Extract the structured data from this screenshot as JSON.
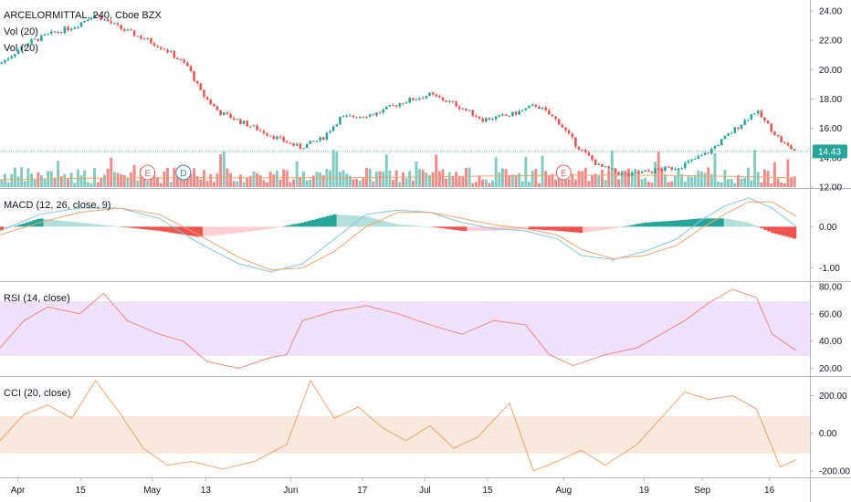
{
  "colors": {
    "up": "#26a69a",
    "down": "#ef5350",
    "vol_up": "#7fcbbf",
    "vol_down": "#f08a8a",
    "macd_line": "#7fc7d9",
    "signal_line": "#f5a36b",
    "rsi_line": "#f08a78",
    "rsi_band": "#efe0fb",
    "cci_line": "#f5a36b",
    "cci_band": "#f8e9dd",
    "price_tag": "#26a69a",
    "axis_text": "#131722"
  },
  "price_pane": {
    "title": "ARCELORMITTAL, 240, Cboe BZX",
    "legend": [
      "Vol (20)",
      "Vol (20)"
    ],
    "y_ticks": [
      "24.00",
      "22.00",
      "20.00",
      "18.00",
      "16.00",
      "14.00",
      "12.00"
    ],
    "last_price": "14.43",
    "earnings_markers": [
      {
        "label": "E",
        "date": "2019-04-30"
      },
      {
        "label": "D",
        "date": "2019-05-08"
      },
      {
        "label": "E",
        "date": "2019-08-01"
      }
    ]
  },
  "macd_pane": {
    "title": "MACD (12, 26, close, 9)",
    "y_ticks": [
      "0.00",
      "-1.00"
    ]
  },
  "rsi_pane": {
    "title": "RSI (14, close)",
    "y_ticks": [
      "80.00",
      "60.00",
      "40.00",
      "20.00"
    ]
  },
  "cci_pane": {
    "title": "CCI (20, close)",
    "y_ticks": [
      "200.00",
      "0.00",
      "-200.00"
    ]
  },
  "x_axis": {
    "ticks": [
      "Apr",
      "15",
      "May",
      "13",
      "Jun",
      "17",
      "Jul",
      "15",
      "Aug",
      "19",
      "Sep",
      "16"
    ]
  },
  "chart_data": {
    "type": "candlestick",
    "x_range": [
      "2019-03-28",
      "2019-09-22"
    ],
    "price_ylim": [
      12,
      24.5
    ],
    "price_path": [
      {
        "date": "2019-03-28",
        "close": 20.4
      },
      {
        "date": "2019-04-03",
        "close": 21.8
      },
      {
        "date": "2019-04-08",
        "close": 22.4
      },
      {
        "date": "2019-04-14",
        "close": 23.0
      },
      {
        "date": "2019-04-18",
        "close": 23.8
      },
      {
        "date": "2019-04-24",
        "close": 22.8
      },
      {
        "date": "2019-04-30",
        "close": 22.0
      },
      {
        "date": "2019-05-04",
        "close": 21.4
      },
      {
        "date": "2019-05-09",
        "close": 20.2
      },
      {
        "date": "2019-05-12",
        "close": 18.4
      },
      {
        "date": "2019-05-16",
        "close": 17.1
      },
      {
        "date": "2019-05-22",
        "close": 16.3
      },
      {
        "date": "2019-05-30",
        "close": 15.2
      },
      {
        "date": "2019-06-03",
        "close": 14.7
      },
      {
        "date": "2019-06-08",
        "close": 15.3
      },
      {
        "date": "2019-06-12",
        "close": 16.7
      },
      {
        "date": "2019-06-20",
        "close": 17.0
      },
      {
        "date": "2019-06-26",
        "close": 17.8
      },
      {
        "date": "2019-07-02",
        "close": 18.3
      },
      {
        "date": "2019-07-08",
        "close": 17.6
      },
      {
        "date": "2019-07-14",
        "close": 16.6
      },
      {
        "date": "2019-07-20",
        "close": 16.9
      },
      {
        "date": "2019-07-26",
        "close": 17.6
      },
      {
        "date": "2019-07-31",
        "close": 16.4
      },
      {
        "date": "2019-08-04",
        "close": 14.8
      },
      {
        "date": "2019-08-09",
        "close": 13.4
      },
      {
        "date": "2019-08-15",
        "close": 12.8
      },
      {
        "date": "2019-08-21",
        "close": 13.1
      },
      {
        "date": "2019-08-27",
        "close": 13.4
      },
      {
        "date": "2019-09-02",
        "close": 14.3
      },
      {
        "date": "2019-09-07",
        "close": 15.6
      },
      {
        "date": "2019-09-13",
        "close": 17.2
      },
      {
        "date": "2019-09-19",
        "close": 15.0
      },
      {
        "date": "2019-09-22",
        "close": 14.43
      }
    ],
    "macd_ylim": [
      -1.3,
      0.85
    ],
    "macd_line": [
      [
        0,
        -0.1
      ],
      [
        0.05,
        0.3
      ],
      [
        0.1,
        0.45
      ],
      [
        0.15,
        0.45
      ],
      [
        0.2,
        0.2
      ],
      [
        0.25,
        -0.4
      ],
      [
        0.3,
        -0.9
      ],
      [
        0.34,
        -1.1
      ],
      [
        0.38,
        -0.9
      ],
      [
        0.42,
        -0.3
      ],
      [
        0.46,
        0.3
      ],
      [
        0.5,
        0.4
      ],
      [
        0.54,
        0.35
      ],
      [
        0.58,
        0.1
      ],
      [
        0.62,
        -0.05
      ],
      [
        0.66,
        -0.1
      ],
      [
        0.7,
        -0.3
      ],
      [
        0.73,
        -0.7
      ],
      [
        0.77,
        -0.8
      ],
      [
        0.81,
        -0.6
      ],
      [
        0.85,
        -0.3
      ],
      [
        0.88,
        0.15
      ],
      [
        0.91,
        0.5
      ],
      [
        0.94,
        0.7
      ],
      [
        0.97,
        0.45
      ],
      [
        1.0,
        0.0
      ]
    ],
    "signal_line": [
      [
        0,
        -0.2
      ],
      [
        0.05,
        0.1
      ],
      [
        0.1,
        0.35
      ],
      [
        0.15,
        0.45
      ],
      [
        0.2,
        0.3
      ],
      [
        0.25,
        -0.2
      ],
      [
        0.3,
        -0.75
      ],
      [
        0.34,
        -1.05
      ],
      [
        0.38,
        -1.0
      ],
      [
        0.42,
        -0.6
      ],
      [
        0.46,
        0.0
      ],
      [
        0.5,
        0.35
      ],
      [
        0.54,
        0.35
      ],
      [
        0.58,
        0.2
      ],
      [
        0.62,
        0.05
      ],
      [
        0.66,
        -0.05
      ],
      [
        0.7,
        -0.2
      ],
      [
        0.73,
        -0.55
      ],
      [
        0.77,
        -0.78
      ],
      [
        0.81,
        -0.7
      ],
      [
        0.85,
        -0.45
      ],
      [
        0.88,
        -0.05
      ],
      [
        0.91,
        0.3
      ],
      [
        0.94,
        0.6
      ],
      [
        0.97,
        0.6
      ],
      [
        1.0,
        0.25
      ]
    ],
    "macd_histogram": [
      [
        0,
        -0.1
      ],
      [
        0.05,
        0.2
      ],
      [
        0.1,
        0.1
      ],
      [
        0.15,
        0.0
      ],
      [
        0.2,
        -0.1
      ],
      [
        0.25,
        -0.25
      ],
      [
        0.3,
        -0.15
      ],
      [
        0.34,
        -0.05
      ],
      [
        0.38,
        0.1
      ],
      [
        0.42,
        0.3
      ],
      [
        0.46,
        0.25
      ],
      [
        0.5,
        0.05
      ],
      [
        0.54,
        0.0
      ],
      [
        0.58,
        -0.1
      ],
      [
        0.62,
        -0.1
      ],
      [
        0.66,
        -0.05
      ],
      [
        0.7,
        -0.1
      ],
      [
        0.73,
        -0.15
      ],
      [
        0.77,
        -0.05
      ],
      [
        0.81,
        0.1
      ],
      [
        0.85,
        0.15
      ],
      [
        0.88,
        0.2
      ],
      [
        0.91,
        0.2
      ],
      [
        0.94,
        0.1
      ],
      [
        0.97,
        -0.15
      ],
      [
        1.0,
        -0.3
      ]
    ],
    "rsi_ylim": [
      15,
      82
    ],
    "rsi_band": [
      30,
      70
    ],
    "rsi": [
      [
        0,
        35
      ],
      [
        0.03,
        55
      ],
      [
        0.06,
        65
      ],
      [
        0.1,
        60
      ],
      [
        0.13,
        75
      ],
      [
        0.16,
        55
      ],
      [
        0.2,
        45
      ],
      [
        0.23,
        40
      ],
      [
        0.26,
        25
      ],
      [
        0.3,
        20
      ],
      [
        0.34,
        28
      ],
      [
        0.36,
        30
      ],
      [
        0.38,
        55
      ],
      [
        0.42,
        62
      ],
      [
        0.46,
        66
      ],
      [
        0.5,
        60
      ],
      [
        0.54,
        52
      ],
      [
        0.58,
        45
      ],
      [
        0.62,
        55
      ],
      [
        0.66,
        52
      ],
      [
        0.69,
        30
      ],
      [
        0.72,
        22
      ],
      [
        0.76,
        30
      ],
      [
        0.8,
        35
      ],
      [
        0.83,
        45
      ],
      [
        0.86,
        55
      ],
      [
        0.89,
        68
      ],
      [
        0.92,
        78
      ],
      [
        0.95,
        72
      ],
      [
        0.97,
        45
      ],
      [
        1.0,
        33
      ]
    ],
    "cci_ylim": [
      -230,
      290
    ],
    "cci_band": [
      -100,
      100
    ],
    "cci": [
      [
        0,
        -40
      ],
      [
        0.03,
        100
      ],
      [
        0.06,
        150
      ],
      [
        0.09,
        80
      ],
      [
        0.12,
        280
      ],
      [
        0.15,
        110
      ],
      [
        0.18,
        -80
      ],
      [
        0.21,
        -170
      ],
      [
        0.24,
        -150
      ],
      [
        0.28,
        -190
      ],
      [
        0.32,
        -150
      ],
      [
        0.36,
        -60
      ],
      [
        0.39,
        280
      ],
      [
        0.42,
        80
      ],
      [
        0.45,
        140
      ],
      [
        0.48,
        30
      ],
      [
        0.51,
        -40
      ],
      [
        0.54,
        40
      ],
      [
        0.57,
        -80
      ],
      [
        0.6,
        -20
      ],
      [
        0.64,
        160
      ],
      [
        0.67,
        -200
      ],
      [
        0.7,
        -150
      ],
      [
        0.73,
        -90
      ],
      [
        0.76,
        -170
      ],
      [
        0.8,
        -60
      ],
      [
        0.83,
        80
      ],
      [
        0.86,
        220
      ],
      [
        0.89,
        180
      ],
      [
        0.92,
        200
      ],
      [
        0.95,
        130
      ],
      [
        0.98,
        -180
      ],
      [
        1.0,
        -140
      ]
    ]
  }
}
